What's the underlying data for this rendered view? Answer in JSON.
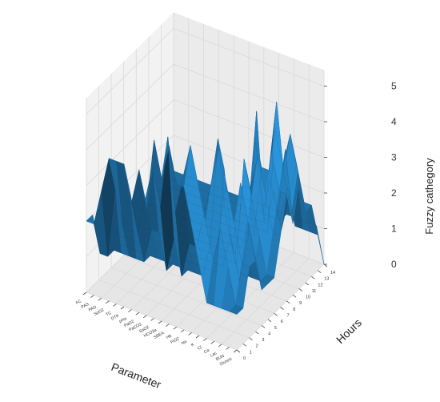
{
  "chart_data": {
    "type": "surface3d",
    "xlabel": "Parameter",
    "ylabel": "Hours",
    "zlabel": "Fuzzy cathegory",
    "parameters": [
      "FC",
      "PAS",
      "PAD",
      "SpO2",
      "TC",
      "DTK",
      "pHa",
      "PaO2",
      "PaCO2",
      "SaO2",
      "HCO3a",
      "SBEA",
      "Hb",
      "FiO2",
      "Na",
      "K",
      "Cl",
      "Ca",
      "Lac",
      "BUN",
      "Diuresi"
    ],
    "hours": [
      0,
      1,
      2,
      3,
      4,
      5,
      6,
      7,
      8,
      9,
      10,
      11,
      12,
      13,
      14
    ],
    "zlim": [
      0,
      5
    ],
    "zticks": [
      0,
      1,
      2,
      3,
      4,
      5
    ],
    "grid": true,
    "z_values": [
      [
        2,
        2,
        1,
        1,
        1,
        1,
        1,
        1,
        1,
        1,
        1,
        1,
        1,
        1,
        1
      ],
      [
        2,
        1,
        1,
        1,
        1,
        1,
        1,
        1,
        1,
        1,
        1,
        1,
        1,
        1,
        1
      ],
      [
        3,
        1,
        1,
        1,
        1,
        1,
        1,
        1,
        1,
        1,
        1,
        1,
        1,
        1,
        1
      ],
      [
        4,
        3,
        1,
        1,
        1,
        1,
        1,
        1,
        1,
        1,
        1,
        1,
        1,
        1,
        1
      ],
      [
        4,
        2,
        1,
        1,
        1,
        1,
        1,
        1,
        1,
        1,
        1,
        1,
        1,
        1,
        1
      ],
      [
        4,
        3,
        1,
        1,
        1,
        1,
        1,
        1,
        1,
        1,
        1,
        1,
        1,
        1,
        1
      ],
      [
        3,
        2,
        1,
        1,
        1,
        1,
        1,
        1,
        1,
        1,
        1,
        1,
        1,
        1,
        1
      ],
      [
        4,
        3,
        2,
        1,
        1,
        1,
        1,
        1,
        1,
        1,
        1,
        1,
        1,
        1,
        1
      ],
      [
        3,
        4,
        2,
        1,
        1,
        1,
        1,
        1,
        1,
        1,
        1,
        1,
        1,
        1,
        1
      ],
      [
        5,
        3,
        1,
        1,
        1,
        1,
        1,
        1,
        1,
        1,
        1,
        1,
        1,
        1,
        1
      ],
      [
        4,
        5,
        2,
        1,
        1,
        1,
        1,
        1,
        1,
        1,
        1,
        1,
        1,
        1,
        1
      ],
      [
        5,
        3,
        1,
        1,
        1,
        1,
        1,
        1,
        1,
        1,
        1,
        1,
        1,
        1,
        1
      ],
      [
        4,
        4,
        2,
        1,
        1,
        1,
        1,
        1,
        1,
        1,
        1,
        1,
        1,
        1,
        1
      ],
      [
        4,
        5,
        2,
        1,
        1,
        1,
        1,
        1,
        1,
        1,
        1,
        1,
        1,
        1,
        1
      ],
      [
        3,
        4,
        3,
        2,
        1,
        1,
        1,
        1,
        1,
        1,
        1,
        1,
        1,
        1,
        1
      ],
      [
        2,
        3,
        4,
        5,
        4,
        2,
        1,
        3,
        2,
        4,
        3,
        1,
        2,
        1,
        1
      ],
      [
        1,
        2,
        5,
        3,
        2,
        1,
        4,
        3,
        5,
        2,
        3,
        4,
        1,
        2,
        1
      ],
      [
        1,
        3,
        4,
        2,
        1,
        1,
        3,
        4,
        2,
        3,
        5,
        3,
        2,
        1,
        1
      ],
      [
        1,
        2,
        3,
        4,
        2,
        1,
        2,
        3,
        4,
        2,
        3,
        4,
        3,
        1,
        1
      ],
      [
        1,
        1,
        2,
        3,
        2,
        1,
        1,
        2,
        3,
        4,
        2,
        3,
        2,
        1,
        1
      ],
      [
        1,
        1,
        2,
        2,
        1,
        1,
        1,
        2,
        3,
        2,
        3,
        2,
        2,
        1,
        0
      ]
    ],
    "colors": {
      "surface": "#1f6ea3",
      "surface_light": "#3a8fc6",
      "surface_dark": "#0d3550",
      "pane": "#f2f2f2",
      "grid": "#d9d9d9"
    }
  }
}
